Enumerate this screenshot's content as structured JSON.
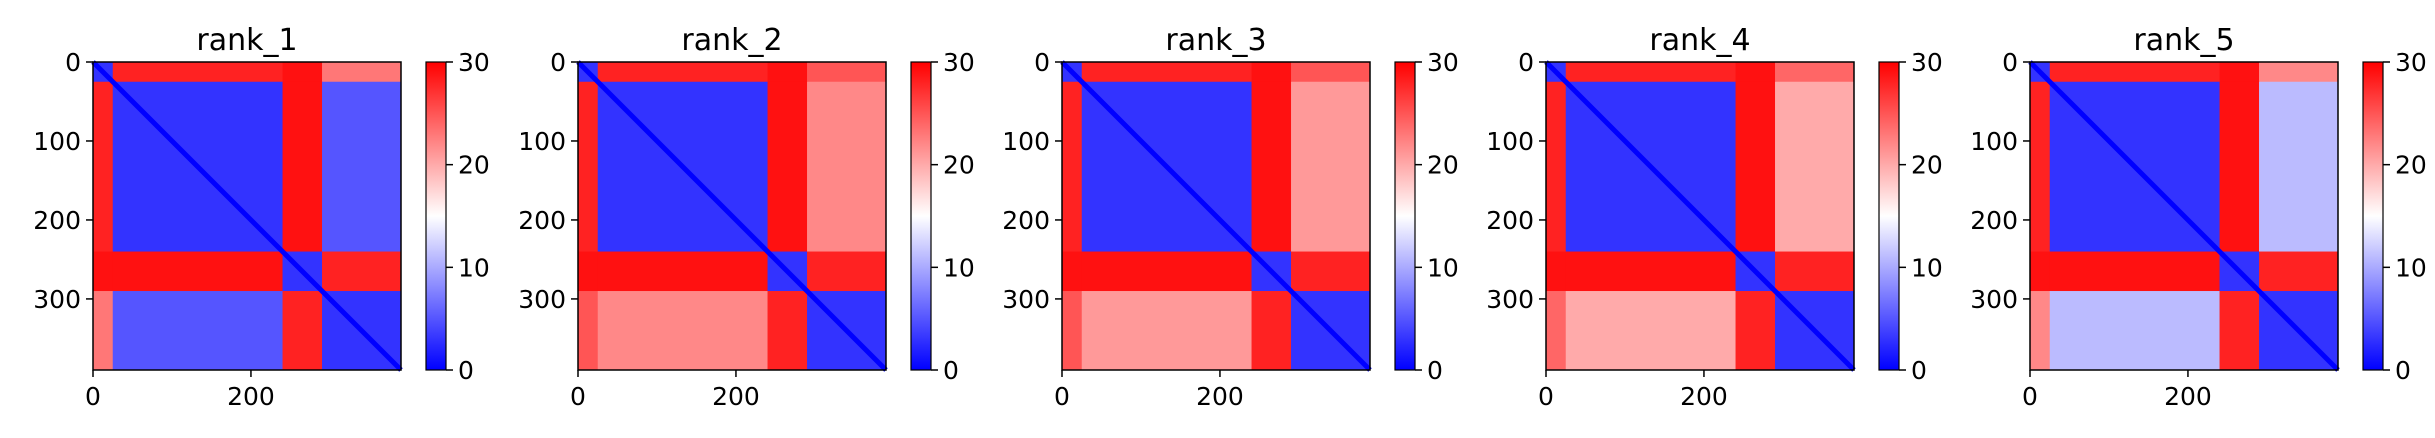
{
  "chart_data": [
    {
      "type": "heatmap",
      "title": "rank_1",
      "n": 390,
      "x_ticks": [
        0,
        200
      ],
      "y_ticks": [
        0,
        100,
        200,
        300
      ],
      "colorbar": {
        "min": 0,
        "max": 30,
        "ticks": [
          0,
          10,
          20,
          30
        ],
        "cmap": "bwr"
      },
      "domains": [
        [
          0,
          25
        ],
        [
          25,
          240
        ],
        [
          240,
          290
        ],
        [
          290,
          390
        ]
      ],
      "domain_values": [
        [
          3,
          28,
          29,
          23
        ],
        [
          28,
          3,
          29,
          5
        ],
        [
          29,
          29,
          3,
          28
        ],
        [
          23,
          5,
          28,
          3
        ]
      ]
    },
    {
      "type": "heatmap",
      "title": "rank_2",
      "n": 390,
      "x_ticks": [
        0,
        200
      ],
      "y_ticks": [
        0,
        100,
        200,
        300
      ],
      "colorbar": {
        "min": 0,
        "max": 30,
        "ticks": [
          0,
          10,
          20,
          30
        ],
        "cmap": "bwr"
      },
      "domains": [
        [
          0,
          25
        ],
        [
          25,
          240
        ],
        [
          240,
          290
        ],
        [
          290,
          390
        ]
      ],
      "domain_values": [
        [
          3,
          28,
          29,
          25
        ],
        [
          28,
          3,
          29,
          22
        ],
        [
          29,
          29,
          3,
          28
        ],
        [
          25,
          22,
          28,
          3
        ]
      ]
    },
    {
      "type": "heatmap",
      "title": "rank_3",
      "n": 390,
      "x_ticks": [
        0,
        200
      ],
      "y_ticks": [
        0,
        100,
        200,
        300
      ],
      "colorbar": {
        "min": 0,
        "max": 30,
        "ticks": [
          0,
          10,
          20,
          30
        ],
        "cmap": "bwr"
      },
      "domains": [
        [
          0,
          25
        ],
        [
          25,
          240
        ],
        [
          240,
          290
        ],
        [
          290,
          390
        ]
      ],
      "domain_values": [
        [
          3,
          28,
          29,
          25
        ],
        [
          28,
          3,
          29,
          21
        ],
        [
          29,
          29,
          3,
          28
        ],
        [
          25,
          21,
          28,
          3
        ]
      ]
    },
    {
      "type": "heatmap",
      "title": "rank_4",
      "n": 390,
      "x_ticks": [
        0,
        200
      ],
      "y_ticks": [
        0,
        100,
        200,
        300
      ],
      "colorbar": {
        "min": 0,
        "max": 30,
        "ticks": [
          0,
          10,
          20,
          30
        ],
        "cmap": "bwr"
      },
      "domains": [
        [
          0,
          25
        ],
        [
          25,
          240
        ],
        [
          240,
          290
        ],
        [
          290,
          390
        ]
      ],
      "domain_values": [
        [
          3,
          28,
          29,
          24
        ],
        [
          28,
          3,
          29,
          20
        ],
        [
          29,
          29,
          3,
          28
        ],
        [
          24,
          20,
          28,
          3
        ]
      ]
    },
    {
      "type": "heatmap",
      "title": "rank_5",
      "n": 390,
      "x_ticks": [
        0,
        200
      ],
      "y_ticks": [
        0,
        100,
        200,
        300
      ],
      "colorbar": {
        "min": 0,
        "max": 30,
        "ticks": [
          0,
          10,
          20,
          30
        ],
        "cmap": "bwr"
      },
      "domains": [
        [
          0,
          25
        ],
        [
          25,
          240
        ],
        [
          240,
          290
        ],
        [
          290,
          390
        ]
      ],
      "domain_values": [
        [
          3,
          28,
          29,
          22
        ],
        [
          28,
          3,
          29,
          11
        ],
        [
          29,
          29,
          3,
          28
        ],
        [
          22,
          11,
          28,
          3
        ]
      ]
    }
  ]
}
